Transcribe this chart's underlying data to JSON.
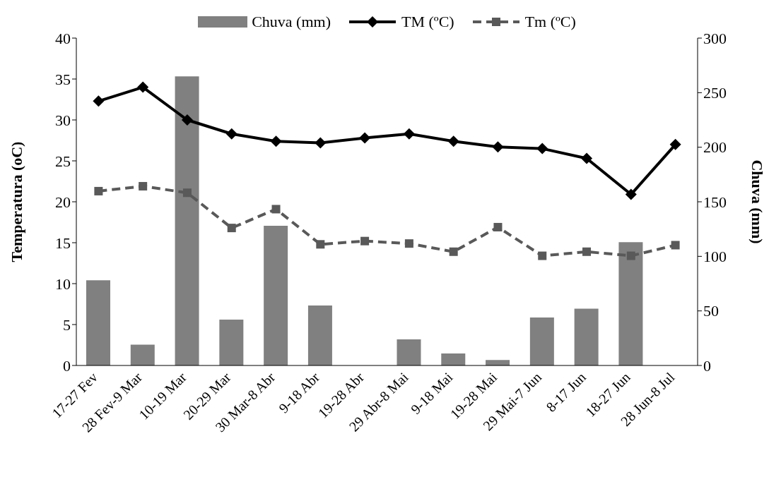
{
  "chart_data": {
    "type": "bar",
    "categories": [
      "17-27 Fev",
      "28 Fev-9 Mar",
      "10-19 Mar",
      "20-29 Mar",
      "30 Mar-8 Abr",
      "9-18 Abr",
      "19-28 Abr",
      "29 Abr-8 Mai",
      "9-18 Mai",
      "19-28 Mai",
      "29 Mai-7 Jun",
      "8-17 Jun",
      "18-27 Jun",
      "28 Jun-8 Jul"
    ],
    "ylabel": "Temperatura (oC)",
    "y2label": "Chuva (mm)",
    "ylim": [
      0,
      40
    ],
    "yticks": [
      0,
      5,
      10,
      15,
      20,
      25,
      30,
      35,
      40
    ],
    "y2lim": [
      0,
      300
    ],
    "y2ticks": [
      0,
      50,
      100,
      150,
      200,
      250,
      300
    ],
    "legend": "top",
    "series": [
      {
        "name": "Chuva (mm)",
        "axis": "y2",
        "color": "#808080",
        "values": [
          78,
          19,
          265,
          42,
          128,
          55,
          0,
          24,
          11,
          5,
          44,
          52,
          113,
          0
        ]
      },
      {
        "name": "TM (ºC)",
        "type": "line",
        "color": "#000000",
        "marker": "diamond",
        "line_style": "solid",
        "values": [
          32.3,
          34,
          30,
          28.3,
          27.4,
          27.2,
          27.8,
          28.3,
          27.4,
          26.7,
          26.5,
          25.3,
          20.9,
          27
        ]
      },
      {
        "name": "Tm (ºC)",
        "type": "line",
        "color": "#595959",
        "marker": "square",
        "line_style": "dashed",
        "values": [
          21.3,
          21.9,
          21.1,
          16.8,
          19.1,
          14.8,
          15.2,
          14.9,
          13.9,
          16.9,
          13.4,
          13.9,
          13.4,
          14.7
        ]
      }
    ]
  }
}
